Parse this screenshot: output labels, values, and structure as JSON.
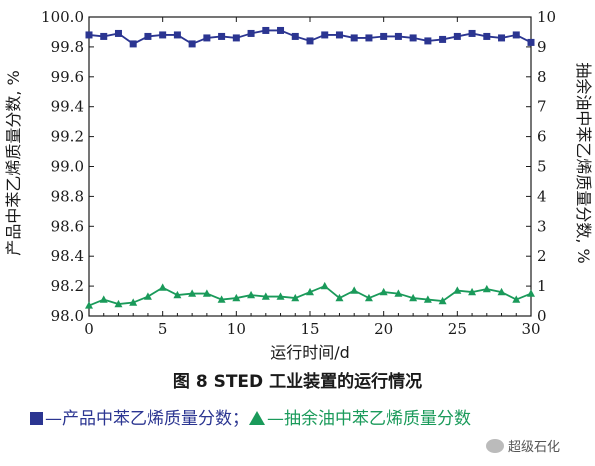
{
  "chart_data": {
    "type": "line",
    "x": [
      0,
      1,
      2,
      3,
      4,
      5,
      6,
      7,
      8,
      9,
      10,
      11,
      12,
      13,
      14,
      15,
      16,
      17,
      18,
      19,
      20,
      21,
      22,
      23,
      24,
      25,
      26,
      27,
      28,
      29,
      30
    ],
    "xlim": [
      0,
      30
    ],
    "xticks": [
      "0",
      "5",
      "10",
      "15",
      "20",
      "25",
      "30"
    ],
    "xlabel": "运行时间/d",
    "ylabel_left": "产品中苯乙烯质量分数, %",
    "ylim_left": [
      98.0,
      100.0
    ],
    "yticks_left": [
      "98.0",
      "98.2",
      "98.4",
      "98.6",
      "98.8",
      "99.0",
      "99.2",
      "99.4",
      "99.6",
      "99.8",
      "100.0"
    ],
    "ylabel_right": "抽余油中苯乙烯质量分数, %",
    "ylim_right": [
      0,
      10
    ],
    "yticks_right": [
      "0",
      "1",
      "2",
      "3",
      "4",
      "5",
      "6",
      "7",
      "8",
      "9",
      "10"
    ],
    "grid": false,
    "series": [
      {
        "marker": "square",
        "color": "#2b3591",
        "axis": "left",
        "values": [
          99.88,
          99.87,
          99.89,
          99.82,
          99.87,
          99.88,
          99.88,
          99.82,
          99.86,
          99.87,
          99.86,
          99.89,
          99.91,
          99.91,
          99.87,
          99.84,
          99.88,
          99.88,
          99.86,
          99.86,
          99.87,
          99.87,
          99.86,
          99.84,
          99.85,
          99.87,
          99.89,
          99.87,
          99.86,
          99.88,
          99.83
        ]
      },
      {
        "marker": "triangle",
        "color": "#1a9a5a",
        "axis": "right",
        "values": [
          0.35,
          0.55,
          0.4,
          0.45,
          0.65,
          0.95,
          0.7,
          0.75,
          0.75,
          0.55,
          0.6,
          0.7,
          0.65,
          0.65,
          0.6,
          0.8,
          1.0,
          0.6,
          0.85,
          0.6,
          0.8,
          0.75,
          0.6,
          0.55,
          0.5,
          0.85,
          0.8,
          0.9,
          0.8,
          0.55,
          0.75
        ]
      }
    ]
  },
  "caption": "图 8   STED 工业装置的运行情况",
  "legend": {
    "item1": "—产品中苯乙烯质量分数；",
    "item2": "—抽余油中苯乙烯质量分数"
  },
  "watermark": "超级石化"
}
